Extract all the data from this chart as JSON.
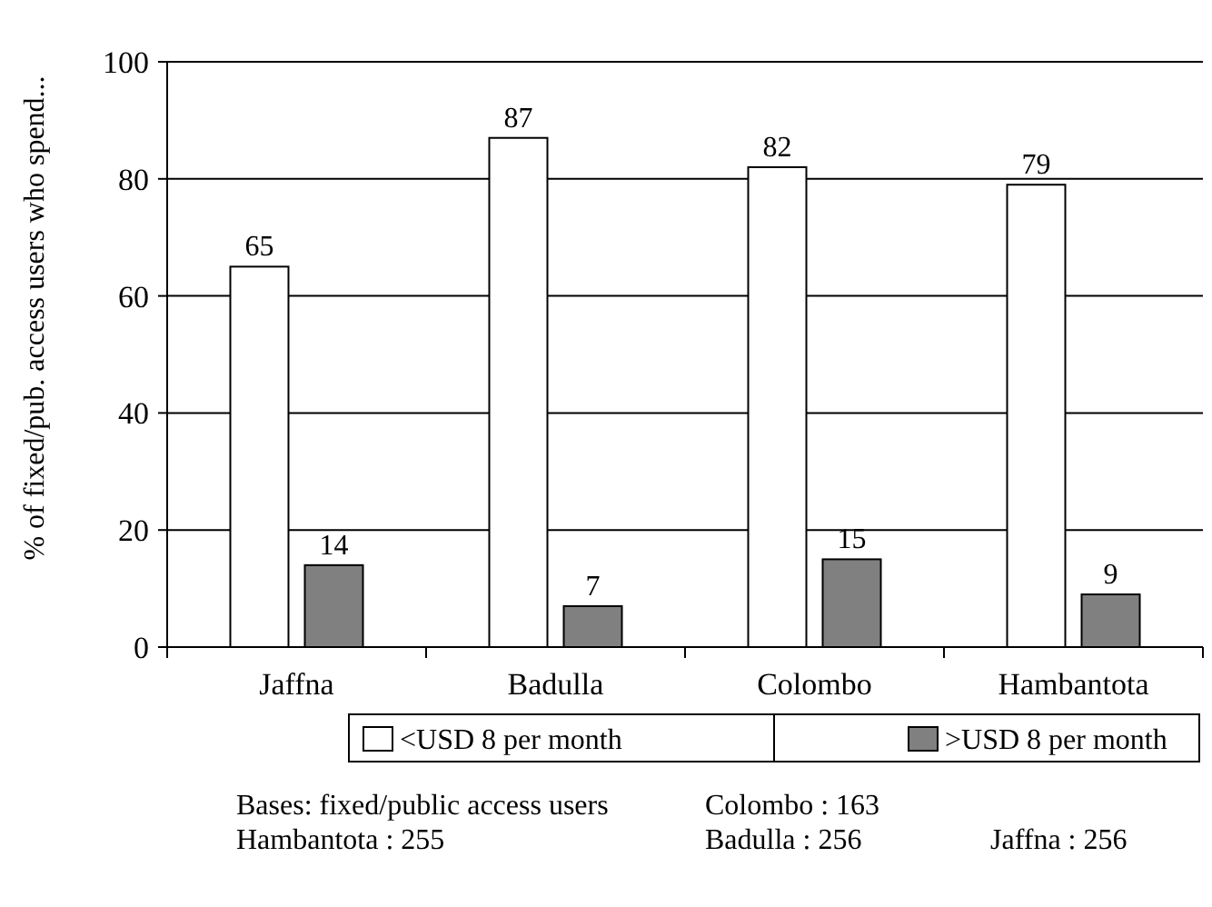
{
  "chart_data": {
    "type": "bar",
    "ylabel": "% of fixed/pub. access users who spend...",
    "categories": [
      "Jaffna",
      "Badulla",
      "Colombo",
      "Hambantota"
    ],
    "series": [
      {
        "name": "<USD 8 per month",
        "color": "#ffffff",
        "values": [
          65,
          87,
          82,
          79
        ]
      },
      {
        "name": ">USD 8 per month",
        "color": "#808080",
        "values": [
          14,
          7,
          15,
          9
        ]
      }
    ],
    "ylim": [
      0,
      100
    ],
    "yticks": [
      0,
      20,
      40,
      60,
      80,
      100
    ],
    "grid": "y",
    "legend": "bottom",
    "data_labels": true,
    "annotations": [
      "Bases: fixed/public access users",
      "Hambantota : 255",
      "Colombo : 163",
      "Badulla : 256",
      "Jaffna : 256"
    ]
  }
}
